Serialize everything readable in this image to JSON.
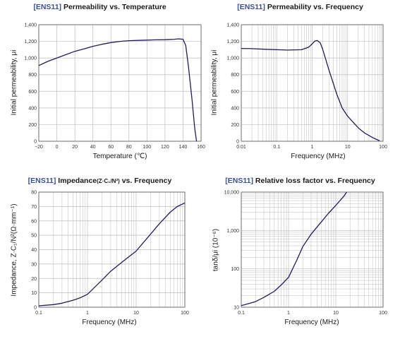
{
  "colors": {
    "curve": "#1f1d5c",
    "grid": "#bdbdbd",
    "frame": "#555555",
    "tag": "#3a4f9c"
  },
  "chart_data": [
    {
      "type": "line",
      "title_tag": "[ENS11]",
      "title_main": "Permeability vs. Temperature",
      "xlabel": "Temperature (℃)",
      "ylabel": "Initial permeability, μi",
      "xscale": "linear",
      "yscale": "linear",
      "xlim": [
        -20,
        160
      ],
      "ylim": [
        0,
        1400
      ],
      "xticks": [
        -20,
        0,
        20,
        40,
        60,
        80,
        100,
        120,
        140,
        160
      ],
      "xtick_labels": [
        "−20",
        "0",
        "20",
        "40",
        "60",
        "80",
        "100",
        "120",
        "140",
        "160"
      ],
      "yticks": [
        0,
        200,
        400,
        600,
        800,
        1000,
        1200,
        1400
      ],
      "ytick_labels": [
        "0",
        "200",
        "400",
        "600",
        "800",
        "1,000",
        "1,200",
        "1,400"
      ],
      "grid": "major",
      "series": [
        {
          "x": [
            -20,
            -10,
            0,
            10,
            20,
            30,
            40,
            50,
            60,
            70,
            80,
            90,
            100,
            110,
            120,
            130,
            135,
            140,
            143,
            146,
            150,
            153,
            155
          ],
          "y": [
            910,
            960,
            1000,
            1040,
            1080,
            1110,
            1140,
            1165,
            1185,
            1200,
            1208,
            1212,
            1215,
            1218,
            1220,
            1225,
            1230,
            1225,
            1150,
            900,
            500,
            150,
            0
          ]
        }
      ]
    },
    {
      "type": "line",
      "title_tag": "[ENS11]",
      "title_main": "Permeability vs. Frequency",
      "xlabel": "Frequency (MHz)",
      "ylabel": "Initial permeability, μi",
      "xscale": "log",
      "yscale": "linear",
      "xlim": [
        0.01,
        100
      ],
      "ylim": [
        0,
        1400
      ],
      "xticks": [
        0.01,
        0.1,
        1,
        10,
        100
      ],
      "xtick_labels": [
        "0.01",
        "0.1",
        "1",
        "10",
        "100"
      ],
      "yticks": [
        0,
        200,
        400,
        600,
        800,
        1000,
        1200,
        1400
      ],
      "ytick_labels": [
        "0",
        "200",
        "400",
        "600",
        "800",
        "1,000",
        "1,200",
        "1,400"
      ],
      "grid": "major+minor",
      "series": [
        {
          "x": [
            0.01,
            0.02,
            0.05,
            0.1,
            0.2,
            0.5,
            0.8,
            1.0,
            1.2,
            1.4,
            1.7,
            2,
            3,
            5,
            7,
            10,
            20,
            30,
            50,
            80
          ],
          "y": [
            1115,
            1112,
            1105,
            1100,
            1095,
            1100,
            1130,
            1170,
            1205,
            1210,
            1180,
            1100,
            850,
            560,
            400,
            300,
            160,
            100,
            45,
            5
          ]
        }
      ]
    },
    {
      "type": "line",
      "title_tag": "[ENS11]",
      "title_main": "Impedance",
      "title_sub": "(Z·C₁/N²)",
      "title_tail": " vs. Frequency",
      "xlabel": "Frequency (MHz)",
      "ylabel": "Impedance, Z·C₁/N²(Ω·mm⁻¹)",
      "xscale": "log",
      "yscale": "linear",
      "xlim": [
        0.1,
        100
      ],
      "ylim": [
        0,
        80
      ],
      "xticks": [
        0.1,
        1,
        10,
        100
      ],
      "xtick_labels": [
        "0.1",
        "1",
        "10",
        "100"
      ],
      "yticks": [
        0,
        10,
        20,
        30,
        40,
        50,
        60,
        70,
        80
      ],
      "ytick_labels": [
        "0",
        "10",
        "20",
        "30",
        "40",
        "50",
        "60",
        "70",
        "80"
      ],
      "grid": "major+minor",
      "series": [
        {
          "x": [
            0.1,
            0.2,
            0.3,
            0.5,
            0.7,
            1,
            2,
            3,
            5,
            10,
            20,
            30,
            50,
            70,
            100
          ],
          "y": [
            1,
            1.8,
            2.8,
            4.8,
            6.5,
            9,
            19,
            25,
            31,
            39,
            51,
            58,
            66,
            70,
            72.5
          ]
        }
      ]
    },
    {
      "type": "line",
      "title_tag": "[ENS11]",
      "title_main": "Relative loss factor vs. Frequency",
      "xlabel": "Frequency (MHz)",
      "ylabel": "tanδ/μi (10⁻⁶)",
      "xscale": "log",
      "yscale": "log",
      "xlim": [
        0.1,
        100
      ],
      "ylim": [
        10,
        10000
      ],
      "xticks": [
        0.1,
        1,
        10,
        100
      ],
      "xtick_labels": [
        "0.1",
        "1",
        "10",
        "100"
      ],
      "yticks": [
        10,
        100,
        1000,
        10000
      ],
      "ytick_labels": [
        "10",
        "100",
        "1,000",
        "10,000"
      ],
      "grid": "major+minor",
      "series": [
        {
          "x": [
            0.1,
            0.2,
            0.3,
            0.5,
            0.7,
            1,
            1.5,
            2,
            3,
            5,
            7,
            10,
            15,
            17
          ],
          "y": [
            11,
            14,
            18,
            26,
            38,
            60,
            170,
            380,
            800,
            1700,
            2800,
            4500,
            8000,
            10000
          ]
        }
      ]
    }
  ]
}
